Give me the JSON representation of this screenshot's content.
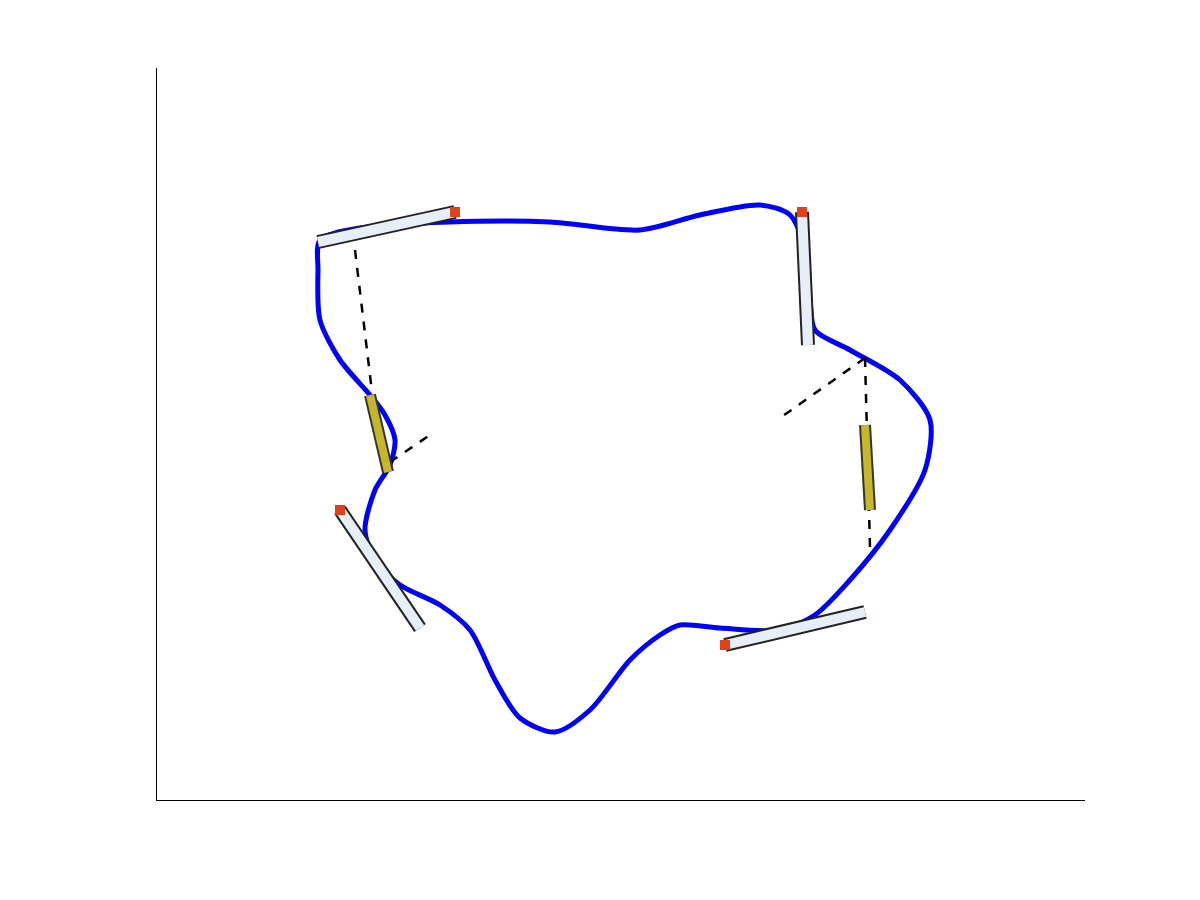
{
  "chart_data": {
    "type": "line",
    "xlim": [
      0,
      928
    ],
    "ylim": [
      0,
      732
    ],
    "tick_labels": false,
    "grid": false,
    "series": [
      {
        "type": "line",
        "color": "#0000ff",
        "line_style": "solid",
        "x": [
          163,
          203,
          293,
          393,
          483,
          543,
          603,
          633,
          648,
          653,
          658,
          693,
          743,
          773,
          768,
          733,
          693,
          658,
          623,
          563,
          523,
          503,
          473,
          433,
          398,
          363,
          338,
          313,
          283,
          243,
          218,
          208,
          218,
          233,
          238,
          228,
          213,
          183,
          163,
          161,
          163
        ],
        "y": [
          560,
          572,
          578,
          578,
          570,
          585,
          595,
          585,
          550,
          500,
          470,
          450,
          420,
          380,
          330,
          270,
          220,
          185,
          170,
          172,
          175,
          165,
          140,
          90,
          68,
          82,
          120,
          170,
          195,
          215,
          240,
          270,
          310,
          335,
          360,
          385,
          405,
          440,
          480,
          530,
          560
        ]
      },
      {
        "type": "line",
        "color": "#000000",
        "line_style": "dashed",
        "x": [
          198,
          215
        ],
        "y": [
          550,
          408
        ]
      },
      {
        "type": "line",
        "color": "#000000",
        "line_style": "dashed",
        "x": [
          233,
          273
        ],
        "y": [
          338,
          365
        ]
      },
      {
        "type": "line",
        "color": "#000000",
        "line_style": "dashed",
        "x": [
          708,
          623
        ],
        "y": [
          442,
          382
        ]
      },
      {
        "type": "line",
        "color": "#000000",
        "line_style": "dashed",
        "x": [
          708,
          713
        ],
        "y": [
          442,
          252
        ]
      },
      {
        "type": "auv",
        "color": "#e8eef8",
        "x": [
          298,
          161
        ],
        "y": [
          588,
          558
        ]
      },
      {
        "type": "auv",
        "color": "#e8eef8",
        "x": [
          645,
          651
        ],
        "y": [
          588,
          455
        ]
      },
      {
        "type": "auv",
        "color": "#e8eef8",
        "x": [
          183,
          263
        ],
        "y": [
          290,
          172
        ]
      },
      {
        "type": "auv",
        "color": "#e8eef8",
        "x": [
          568,
          708
        ],
        "y": [
          155,
          188
        ]
      },
      {
        "type": "glider",
        "color": "#c8b62a",
        "x": [
          213,
          231
        ],
        "y": [
          405,
          328
        ]
      },
      {
        "type": "glider",
        "color": "#c8b62a",
        "x": [
          708,
          713
        ],
        "y": [
          375,
          290
        ]
      }
    ]
  }
}
